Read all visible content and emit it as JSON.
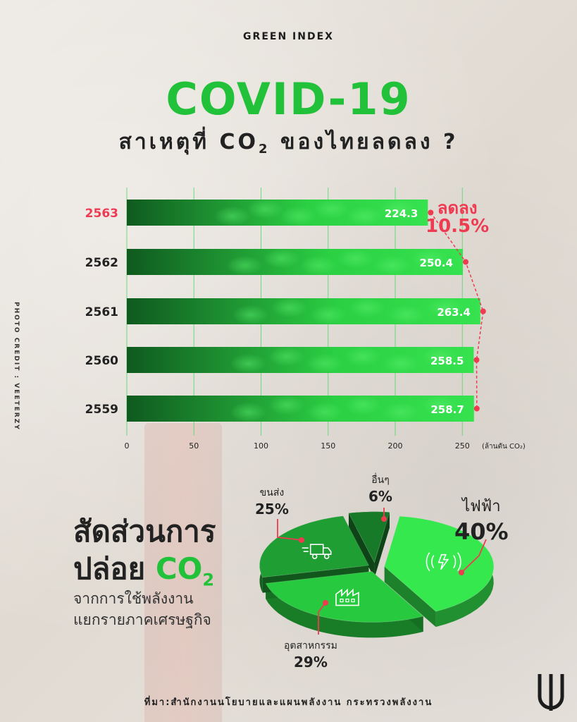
{
  "header": {
    "brand": "GREEN INDEX",
    "title": "COVID-19",
    "subtitle_pre": "สาเหตุที่",
    "subtitle_co": "CO",
    "subtitle_sub": "2",
    "subtitle_post": "ของไทยลดลง ?"
  },
  "photo_credit": "PHOTO CREDIT : VEETERZY",
  "chart_data": [
    {
      "type": "bar",
      "orientation": "horizontal",
      "categories": [
        "2563",
        "2562",
        "2561",
        "2560",
        "2559"
      ],
      "values": [
        224.3,
        250.4,
        263.4,
        258.5,
        258.7
      ],
      "value_labels": [
        "224.3",
        "250.4",
        "263.4",
        "258.5",
        "258.7"
      ],
      "x_ticks": [
        0,
        50,
        100,
        150,
        200,
        250
      ],
      "x_tick_labels": [
        "0",
        "50",
        "100",
        "150",
        "200",
        "250"
      ],
      "xlim": [
        0,
        270
      ],
      "unit_label": "(ล้านตัน CO₂)",
      "grid": true,
      "highlight_category": "2563",
      "highlight_color": "#ee3b52",
      "bar_color": "#22c13a",
      "annotation": {
        "line1": "ลดลง",
        "line2": "10.5%"
      }
    },
    {
      "type": "pie",
      "labels": [
        "ไฟฟ้า",
        "อุตสาหกรรม",
        "ขนส่ง",
        "อื่นๆ"
      ],
      "values": [
        40,
        29,
        25,
        6
      ],
      "value_labels": [
        "40%",
        "29%",
        "25%",
        "6%"
      ],
      "colors": [
        "#35e84e",
        "#27c93e",
        "#1e9e33",
        "#177a28"
      ],
      "icons": [
        "electricity-icon",
        "factory-icon",
        "truck-icon",
        "other-icon"
      ]
    }
  ],
  "section": {
    "title_line1": "สัดส่วนการ",
    "title_line2": "ปล่อย",
    "title_co": "CO",
    "title_sub": "2",
    "desc_line1": "จากการใช้พลังงาน",
    "desc_line2": "แยกรายภาคเศรษฐกิจ"
  },
  "source": "ที่มา:สำนักงานนโยบายและแผนพลังงาน กระทรวงพลังงาน",
  "accent_color": "#22c13a",
  "alert_color": "#ee3b52"
}
